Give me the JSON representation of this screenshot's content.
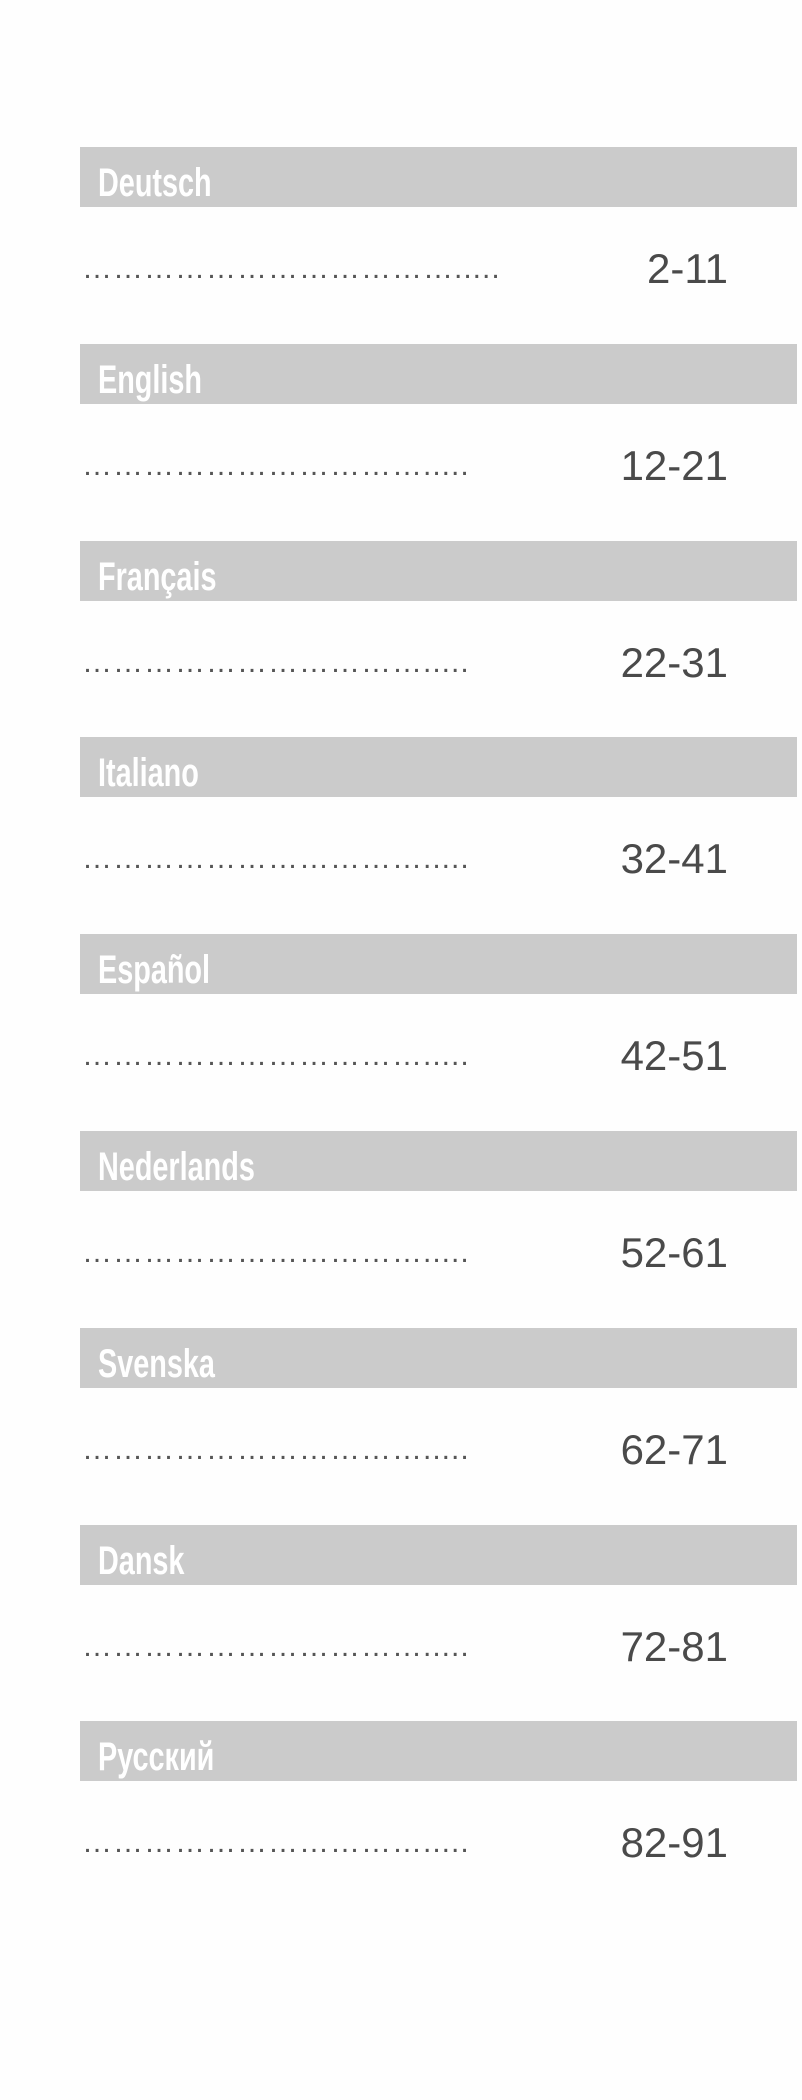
{
  "entries": [
    {
      "language": "Deutsch",
      "leader": "……………………………….....",
      "pages": "2-11"
    },
    {
      "language": "English",
      "leader": "…………………………….....",
      "pages": "12-21"
    },
    {
      "language": "Français",
      "leader": "…………………………….....",
      "pages": "22-31"
    },
    {
      "language": "Italiano",
      "leader": "…………………………….....",
      "pages": "32-41"
    },
    {
      "language": "Español",
      "leader": "…………………………….....",
      "pages": "42-51"
    },
    {
      "language": "Nederlands",
      "leader": "…………………………….....",
      "pages": "52-61"
    },
    {
      "language": "Svenska",
      "leader": "…………………………….....",
      "pages": "62-71"
    },
    {
      "language": "Dansk",
      "leader": "…………………………….....",
      "pages": "72-81"
    },
    {
      "language": "Русский",
      "leader": "…………………………….....",
      "pages": "82-91"
    }
  ]
}
